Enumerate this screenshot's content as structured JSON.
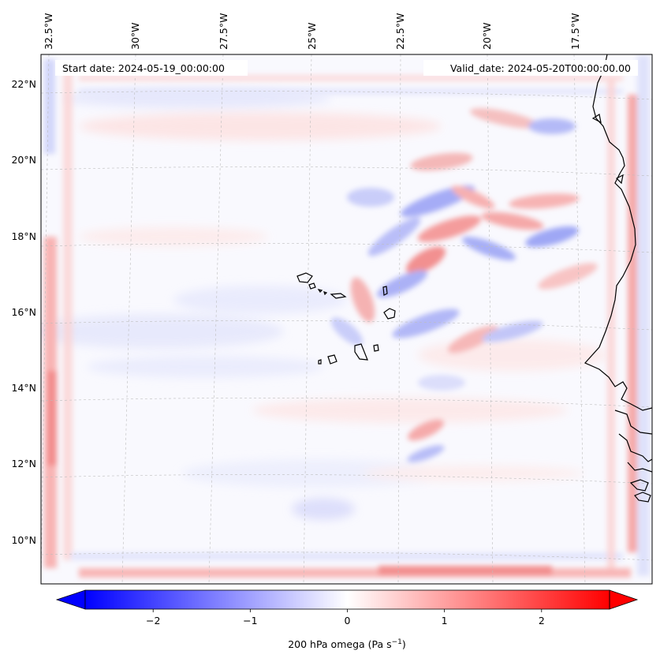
{
  "annotations": {
    "start_date": "Start date: 2024-05-19_00:00:00",
    "valid_date": "Valid_date: 2024-05-20T00:00:00.00"
  },
  "lon_labels": [
    "32.5°W",
    "30°W",
    "27.5°W",
    "25°W",
    "22.5°W",
    "20°W",
    "17.5°W"
  ],
  "lat_labels": [
    "22°N",
    "20°N",
    "18°N",
    "16°N",
    "14°N",
    "12°N",
    "10°N"
  ],
  "colorbar": {
    "label": "200 hPa omega (Pa s",
    "label_exp": "−1",
    "label_close": ")",
    "ticks": [
      "−2",
      "−1",
      "0",
      "1",
      "2"
    ],
    "tick_values": [
      -2,
      -1,
      0,
      1,
      2
    ],
    "range": [
      -2.7,
      2.7
    ],
    "extend": "both",
    "colormap": "bwr",
    "color_low": "#0000ff",
    "color_mid": "#ffffff",
    "color_high": "#ff0000"
  },
  "map": {
    "field": "200 hPa omega",
    "coastline_color": "#000000",
    "gridline_color": "#bbbbbb"
  }
}
